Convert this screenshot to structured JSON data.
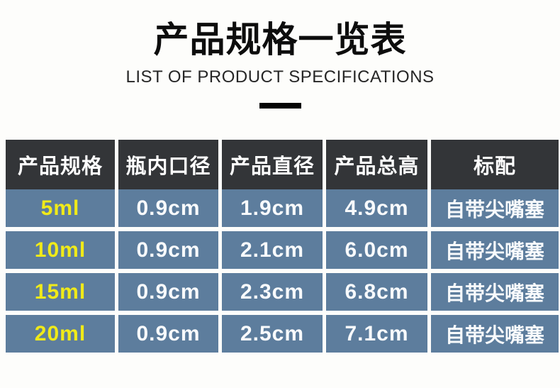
{
  "page": {
    "title": "产品规格一览表",
    "subtitle": "LIST OF PRODUCT SPECIFICATIONS"
  },
  "table": {
    "columns": [
      "产品规格",
      "瓶内口径",
      "产品直径",
      "产品总高",
      "标配"
    ],
    "rows": [
      {
        "spec": "5ml",
        "inner_diameter": "0.9cm",
        "product_diameter": "1.9cm",
        "total_height": "4.9cm",
        "standard": "自带尖嘴塞"
      },
      {
        "spec": "10ml",
        "inner_diameter": "0.9cm",
        "product_diameter": "2.1cm",
        "total_height": "6.0cm",
        "standard": "自带尖嘴塞"
      },
      {
        "spec": "15ml",
        "inner_diameter": "0.9cm",
        "product_diameter": "2.3cm",
        "total_height": "6.8cm",
        "standard": "自带尖嘴塞"
      },
      {
        "spec": "20ml",
        "inner_diameter": "0.9cm",
        "product_diameter": "2.5cm",
        "total_height": "7.1cm",
        "standard": "自带尖嘴塞"
      }
    ]
  },
  "colors": {
    "header_bg": "#333538",
    "row_bg": "#5d7d9d",
    "spec_value_text": "#f0ea19",
    "cell_text": "#ffffff",
    "title_text": "#0d0d0d",
    "divider": "#040404",
    "page_bg": "#fdfdfb"
  }
}
